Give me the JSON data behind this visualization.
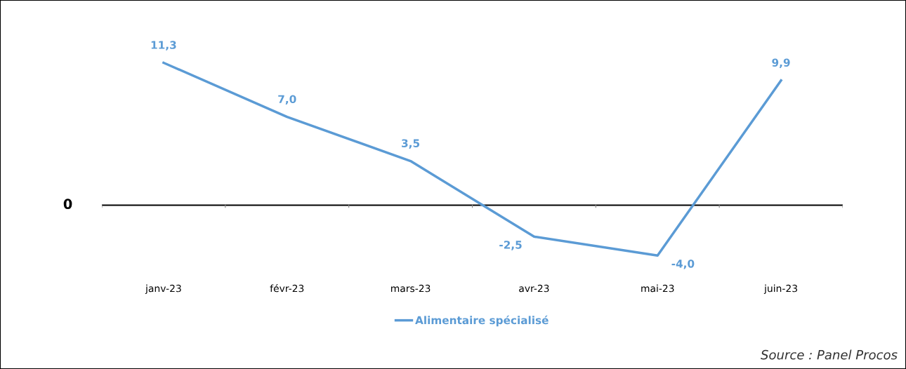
{
  "chart_data": {
    "type": "line",
    "categories": [
      "janv-23",
      "févr-23",
      "mars-23",
      "avr-23",
      "mai-23",
      "juin-23"
    ],
    "series": [
      {
        "name": "Alimentaire spécialisé",
        "color": "#5b9bd5",
        "values": [
          11.3,
          7.0,
          3.5,
          -2.5,
          -4.0,
          9.9
        ],
        "value_labels": [
          "11,3",
          "7,0",
          "3,5",
          "-2,5",
          "-4,0",
          "9,9"
        ]
      }
    ],
    "ref_lines": [
      {
        "axis": "y",
        "value": 0,
        "label": "0",
        "color": "#000000"
      }
    ],
    "grid": false,
    "legend": "bottom",
    "marker": "none",
    "line_style": "solid",
    "annotations": [
      "Source : Panel Procos"
    ]
  }
}
